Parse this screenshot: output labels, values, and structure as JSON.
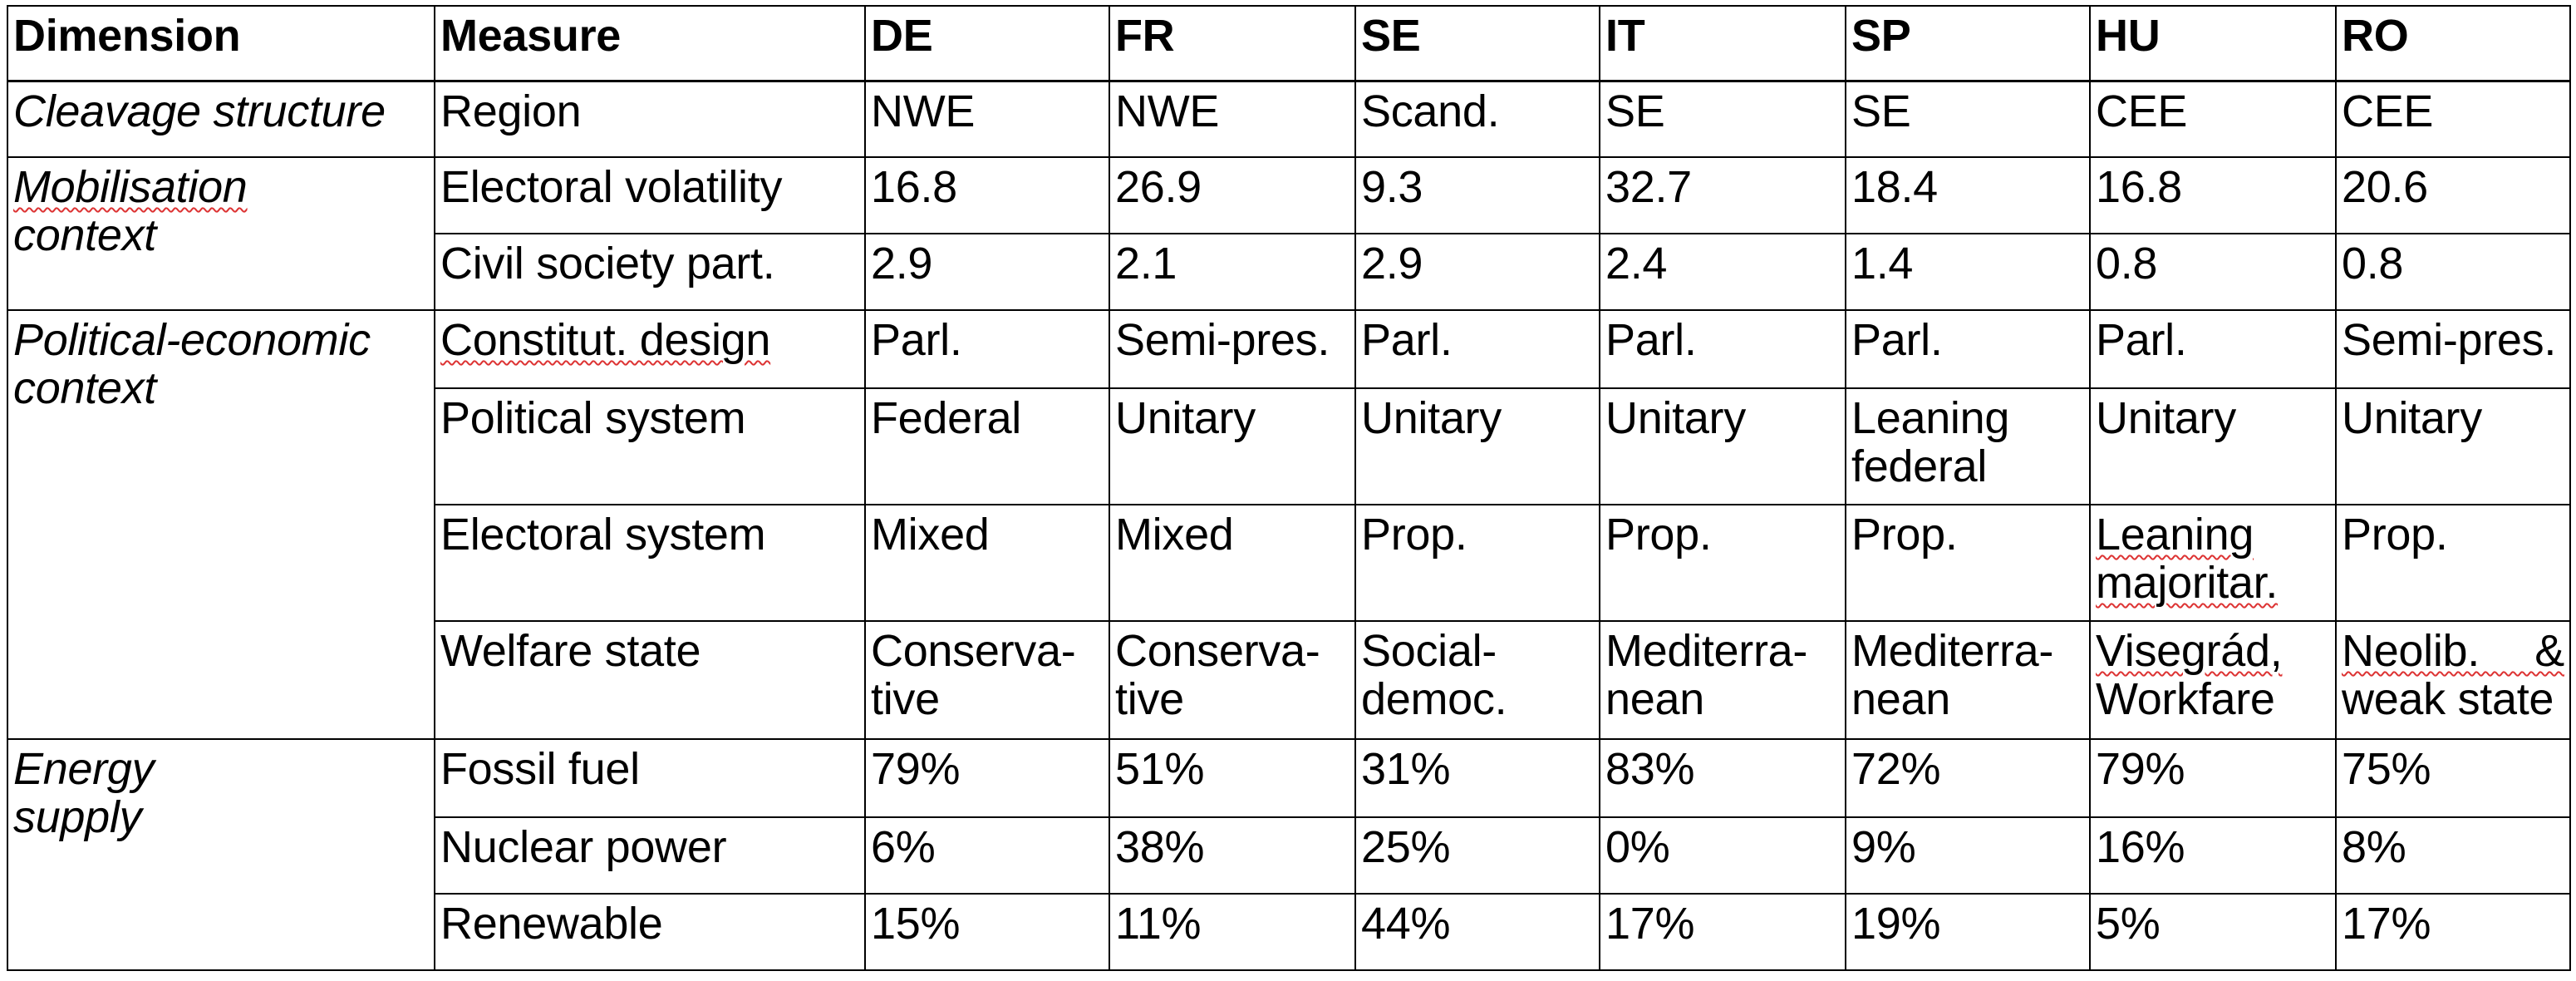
{
  "headers": [
    "Dimension",
    "Measure",
    "DE",
    "FR",
    "SE",
    "IT",
    "SP",
    "HU",
    "RO"
  ],
  "dimensions": {
    "cleavage": "Cleavage structure",
    "mobilisation_1": "Mobilisation",
    "mobilisation_2": "context",
    "political_1": "Political-economic",
    "political_2": "context",
    "energy_1": "Energy",
    "energy_2": "supply"
  },
  "rows": {
    "region": {
      "measure": "Region",
      "values": [
        "NWE",
        "NWE",
        "Scand.",
        "SE",
        "SE",
        "CEE",
        "CEE"
      ]
    },
    "volatility": {
      "measure": "Electoral volatility",
      "values": [
        "16.8",
        "26.9",
        "9.3",
        "32.7",
        "18.4",
        "16.8",
        "20.6"
      ]
    },
    "civil": {
      "measure": "Civil society part.",
      "values": [
        "2.9",
        "2.1",
        "2.9",
        "2.4",
        "1.4",
        "0.8",
        "0.8"
      ]
    },
    "constitut": {
      "measure": "Constitut. design",
      "values": [
        "Parl.",
        "Semi-pres.",
        "Parl.",
        "Parl.",
        "Parl.",
        "Parl.",
        "Semi-pres."
      ]
    },
    "polsys": {
      "measure": "Political system",
      "values": [
        "Federal",
        "Unitary",
        "Unitary",
        "Unitary",
        "Leaning federal",
        "Unitary",
        "Unitary"
      ]
    },
    "elecsys": {
      "measure": "Electoral system",
      "values": [
        "Mixed",
        "Mixed",
        "Prop.",
        "Prop.",
        "Prop.",
        "Leaning majoritar.",
        "Prop."
      ]
    },
    "welfare": {
      "measure": "Welfare state",
      "values": [
        "Conserva-tive",
        "Conserva-tive",
        "Social-democ.",
        "Mediterra-nean",
        "Mediterra-nean",
        "Visegrád, Workfare",
        "Neolib. & weak state"
      ]
    },
    "fossil": {
      "measure": "Fossil fuel",
      "values": [
        "79%",
        "51%",
        "31%",
        "83%",
        "72%",
        "79%",
        "75%"
      ]
    },
    "nuclear": {
      "measure": "Nuclear power",
      "values": [
        "6%",
        "38%",
        "25%",
        "0%",
        "9%",
        "16%",
        "8%"
      ]
    },
    "renewable": {
      "measure": "Renewable",
      "values": [
        "15%",
        "11%",
        "44%",
        "17%",
        "19%",
        "5%",
        "17%"
      ]
    }
  },
  "welfare_lines": {
    "de": [
      "Conserva-",
      "tive"
    ],
    "fr": [
      "Conserva-",
      "tive"
    ],
    "se": [
      "Social-",
      "democ."
    ],
    "it": [
      "Mediterra-",
      "nean"
    ],
    "sp": [
      "Mediterra-",
      "nean"
    ],
    "hu": [
      "Visegrád,",
      "Workfare"
    ],
    "ro": [
      "Neolib. &",
      "weak state"
    ]
  }
}
